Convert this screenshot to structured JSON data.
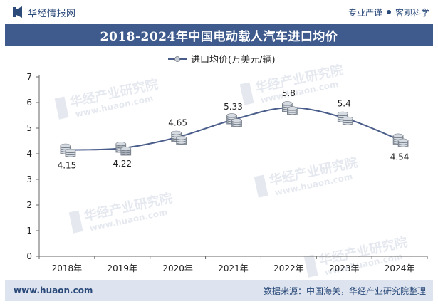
{
  "brand": {
    "name": "华经情报网",
    "logo_icon": "huajing-logo-icon"
  },
  "slogan": {
    "left": "专业严谨",
    "right": "客观科学"
  },
  "watermark": {
    "brand": "华经产业研究院",
    "url": "www.huaon.com"
  },
  "chart_data": {
    "type": "line",
    "title": "2018-2024年中国电动载人汽车进口均价",
    "categories": [
      "2018年",
      "2019年",
      "2020年",
      "2021年",
      "2022年",
      "2023年",
      "2024年"
    ],
    "series": [
      {
        "name": "进口均价(万美元/辆)",
        "values": [
          4.15,
          4.22,
          4.65,
          5.33,
          5.8,
          5.4,
          4.54
        ],
        "color": "#4a5d8a"
      }
    ],
    "data_labels": [
      "4.15",
      "4.22",
      "4.65",
      "5.33",
      "5.8",
      "5.4",
      "4.54"
    ],
    "yticks": [
      "0",
      "1",
      "2",
      "3",
      "4",
      "5",
      "6",
      "7"
    ],
    "ylim": [
      0,
      7
    ],
    "xlabel": "",
    "ylabel": "",
    "grid": false,
    "legend": "top-center",
    "marker": "coin-stack"
  },
  "footer": {
    "url": "www.huaon.com",
    "source": "数据来源：中国海关，华经产业研究院整理"
  }
}
